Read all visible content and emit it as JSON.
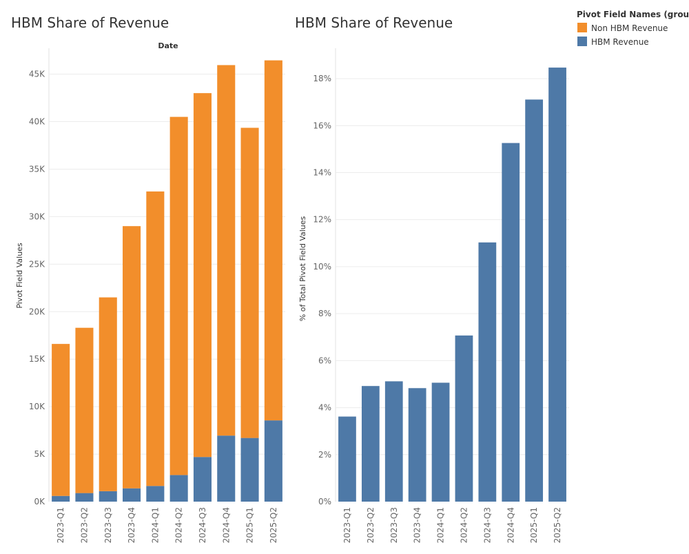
{
  "chart_data": [
    {
      "type": "bar",
      "stacked": true,
      "title": "HBM Share of Revenue",
      "column_header": "Date",
      "ylabel": "Pivot Field Values",
      "xlabel": "",
      "categories": [
        "2023-Q1",
        "2023-Q2",
        "2023-Q3",
        "2023-Q4",
        "2024-Q1",
        "2024-Q2",
        "2024-Q3",
        "2024-Q4",
        "2025-Q1",
        "2025-Q2"
      ],
      "series": [
        {
          "name": "HBM Revenue",
          "color": "#4e79a7",
          "values": [
            600,
            900,
            1100,
            1400,
            1650,
            2800,
            4700,
            6950,
            6700,
            8550
          ]
        },
        {
          "name": "Non HBM Revenue",
          "color": "#f28e2b",
          "values": [
            16000,
            17400,
            20400,
            27600,
            31000,
            37700,
            38300,
            39000,
            32650,
            37900
          ]
        }
      ],
      "ylim": [
        0,
        47000
      ],
      "yticks": [
        0,
        5000,
        10000,
        15000,
        20000,
        25000,
        30000,
        35000,
        40000,
        45000
      ],
      "ytick_labels": [
        "0K",
        "5K",
        "10K",
        "15K",
        "20K",
        "25K",
        "30K",
        "35K",
        "40K",
        "45K"
      ]
    },
    {
      "type": "bar",
      "title": "HBM Share of Revenue",
      "ylabel": "% of Total Pivot Field Values",
      "xlabel": "",
      "categories": [
        "2023-Q1",
        "2023-Q2",
        "2023-Q3",
        "2023-Q4",
        "2024-Q1",
        "2024-Q2",
        "2024-Q3",
        "2024-Q4",
        "2025-Q1",
        "2025-Q2"
      ],
      "series": [
        {
          "name": "HBM Revenue",
          "color": "#4e79a7",
          "values": [
            3.62,
            4.92,
            5.12,
            4.83,
            5.06,
            7.07,
            11.03,
            15.26,
            17.11,
            18.47
          ]
        }
      ],
      "ylim": [
        0,
        19
      ],
      "yticks": [
        0,
        2,
        4,
        6,
        8,
        10,
        12,
        14,
        16,
        18
      ],
      "ytick_labels": [
        "0%",
        "2%",
        "4%",
        "6%",
        "8%",
        "10%",
        "12%",
        "14%",
        "16%",
        "18%"
      ]
    }
  ],
  "legend": {
    "title": "Pivot Field Names (group)",
    "items": [
      {
        "label": "Non HBM Revenue",
        "color": "#f28e2b"
      },
      {
        "label": "HBM Revenue",
        "color": "#4e79a7"
      }
    ]
  }
}
